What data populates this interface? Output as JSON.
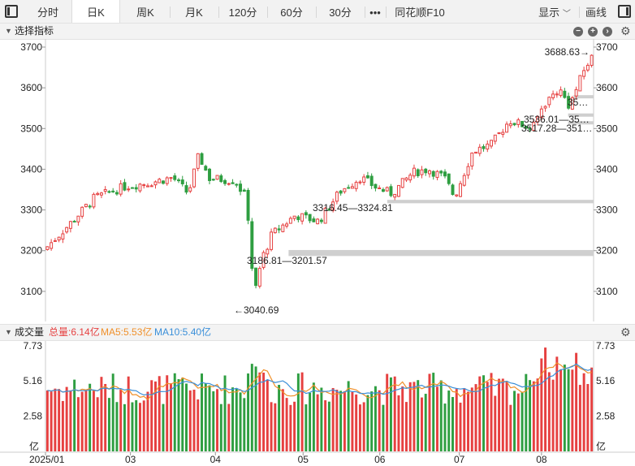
{
  "toolbar": {
    "tabs": [
      {
        "label": "分时",
        "active": false
      },
      {
        "label": "日K",
        "active": true
      },
      {
        "label": "周K",
        "active": false
      },
      {
        "label": "月K",
        "active": false
      },
      {
        "label": "120分",
        "active": false
      },
      {
        "label": "60分",
        "active": false
      },
      {
        "label": "30分",
        "active": false
      },
      {
        "label": "•••",
        "active": false
      },
      {
        "label": "同花顺F10",
        "active": false
      }
    ],
    "display_label": "显示",
    "draw_label": "画线"
  },
  "price_panel": {
    "header_label": "选择指标",
    "y_ticks": [
      "3700",
      "3600",
      "3500",
      "3400",
      "3300",
      "3200",
      "3100"
    ],
    "annotations": {
      "high_label": "3688.63→",
      "low_label": "←3040.69",
      "gap1_label": "3186.81—3201.57",
      "gap2_label": "3316.45—3324.81",
      "gap3_label": "3517.28—351…",
      "gap4_label": "3536.01—35…",
      "gap5_label": "35…"
    }
  },
  "volume_panel": {
    "header_label": "成交量",
    "total_label": "总量:6.14亿",
    "ma5_label": "MA5:5.53亿",
    "ma10_label": "MA10:5.40亿",
    "y_ticks": [
      "7.73",
      "5.16",
      "2.58",
      "亿"
    ],
    "x_ticks": [
      "2025/01",
      "03",
      "04",
      "05",
      "06",
      "07",
      "08"
    ]
  },
  "colors": {
    "up": "#e64040",
    "down": "#2e9e41",
    "ma5": "#f0902a",
    "ma10": "#3a8fd9",
    "gap": "#cfcfcf"
  },
  "chart_data": {
    "type": "candlestick",
    "price_ylim": [
      3030,
      3700
    ],
    "volume_ylim": [
      0,
      7.73
    ],
    "unit_volume": "亿",
    "num_days": 142,
    "gaps": [
      [
        3186.81,
        3201.57
      ],
      [
        3316.45,
        3324.81
      ],
      [
        3517.28,
        3518
      ],
      [
        3536.01,
        3537
      ],
      [
        3580,
        3582
      ]
    ],
    "high": 3688.63,
    "low": 3040.69,
    "last_volume": 6.14,
    "last_ma5": 5.53,
    "last_ma10": 5.4
  }
}
